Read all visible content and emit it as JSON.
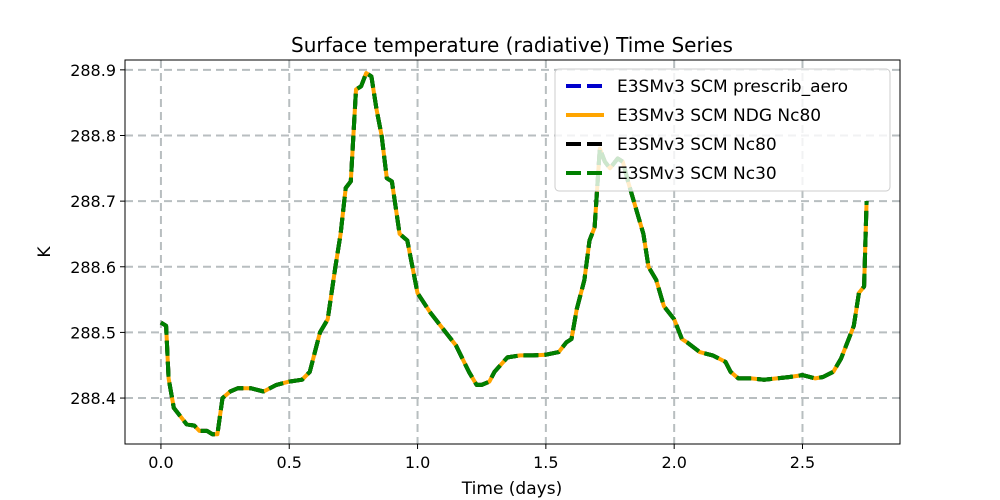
{
  "chart_data": {
    "type": "line",
    "title": "Surface temperature (radiative) Time Series",
    "xlabel": "Time (days)",
    "ylabel": "K",
    "xlim": [
      -0.14,
      2.88
    ],
    "ylim": [
      288.33,
      288.915
    ],
    "xticks": [
      0.0,
      0.5,
      1.0,
      1.5,
      2.0,
      2.5
    ],
    "xtick_labels": [
      "0.0",
      "0.5",
      "1.0",
      "1.5",
      "2.0",
      "2.5"
    ],
    "yticks": [
      288.4,
      288.5,
      288.6,
      288.7,
      288.8,
      288.9
    ],
    "ytick_labels": [
      "288.4",
      "288.5",
      "288.6",
      "288.7",
      "288.8",
      "288.9"
    ],
    "grid": true,
    "legend_position": "top-right",
    "x": [
      0.0,
      0.02,
      0.03,
      0.05,
      0.08,
      0.1,
      0.13,
      0.15,
      0.18,
      0.2,
      0.22,
      0.24,
      0.27,
      0.3,
      0.35,
      0.4,
      0.45,
      0.5,
      0.55,
      0.58,
      0.62,
      0.65,
      0.68,
      0.7,
      0.72,
      0.74,
      0.76,
      0.78,
      0.8,
      0.82,
      0.84,
      0.86,
      0.88,
      0.9,
      0.93,
      0.96,
      1.0,
      1.05,
      1.1,
      1.15,
      1.2,
      1.23,
      1.25,
      1.28,
      1.3,
      1.35,
      1.4,
      1.45,
      1.5,
      1.55,
      1.58,
      1.6,
      1.62,
      1.65,
      1.67,
      1.69,
      1.71,
      1.73,
      1.75,
      1.78,
      1.8,
      1.82,
      1.85,
      1.88,
      1.9,
      1.93,
      1.96,
      2.0,
      2.03,
      2.05,
      2.1,
      2.15,
      2.2,
      2.22,
      2.25,
      2.3,
      2.35,
      2.4,
      2.45,
      2.5,
      2.55,
      2.58,
      2.62,
      2.65,
      2.68,
      2.7,
      2.72,
      2.74,
      2.75
    ],
    "series": [
      {
        "name": "E3SMv3 SCM prescrib_aero",
        "color": "#0000cc",
        "style": "dashed",
        "values": [
          288.515,
          288.51,
          288.43,
          288.385,
          288.37,
          288.36,
          288.358,
          288.35,
          288.35,
          288.345,
          288.345,
          288.4,
          288.41,
          288.415,
          288.415,
          288.41,
          288.42,
          288.425,
          288.428,
          288.44,
          288.5,
          288.52,
          288.6,
          288.65,
          288.72,
          288.73,
          288.87,
          288.875,
          288.895,
          288.89,
          288.84,
          288.8,
          288.735,
          288.73,
          288.65,
          288.64,
          288.56,
          288.53,
          288.505,
          288.48,
          288.44,
          288.42,
          288.42,
          288.425,
          288.44,
          288.462,
          288.465,
          288.465,
          288.466,
          288.47,
          288.485,
          288.49,
          288.535,
          288.58,
          288.64,
          288.66,
          288.78,
          288.76,
          288.75,
          288.765,
          288.76,
          288.73,
          288.69,
          288.65,
          288.6,
          288.58,
          288.54,
          288.52,
          288.49,
          288.485,
          288.47,
          288.465,
          288.455,
          288.44,
          288.43,
          288.43,
          288.428,
          288.43,
          288.432,
          288.435,
          288.43,
          288.432,
          288.44,
          288.46,
          288.49,
          288.51,
          288.56,
          288.57,
          288.7
        ]
      },
      {
        "name": "E3SMv3 SCM NDG Nc80",
        "color": "#ffa500",
        "style": "solid",
        "values": [
          288.515,
          288.51,
          288.43,
          288.385,
          288.37,
          288.36,
          288.358,
          288.35,
          288.35,
          288.345,
          288.345,
          288.4,
          288.41,
          288.415,
          288.415,
          288.41,
          288.42,
          288.425,
          288.428,
          288.44,
          288.5,
          288.52,
          288.6,
          288.65,
          288.72,
          288.73,
          288.87,
          288.875,
          288.895,
          288.89,
          288.84,
          288.8,
          288.735,
          288.73,
          288.65,
          288.64,
          288.56,
          288.53,
          288.505,
          288.48,
          288.44,
          288.42,
          288.42,
          288.425,
          288.44,
          288.462,
          288.465,
          288.465,
          288.466,
          288.47,
          288.485,
          288.49,
          288.535,
          288.58,
          288.64,
          288.66,
          288.78,
          288.76,
          288.75,
          288.765,
          288.76,
          288.73,
          288.69,
          288.65,
          288.6,
          288.58,
          288.54,
          288.52,
          288.49,
          288.485,
          288.47,
          288.465,
          288.455,
          288.44,
          288.43,
          288.43,
          288.428,
          288.43,
          288.432,
          288.435,
          288.43,
          288.432,
          288.44,
          288.46,
          288.49,
          288.51,
          288.56,
          288.57,
          288.7
        ]
      },
      {
        "name": "E3SMv3 SCM Nc80",
        "color": "#000000",
        "style": "dashed",
        "values": [
          288.515,
          288.51,
          288.43,
          288.385,
          288.37,
          288.36,
          288.358,
          288.35,
          288.35,
          288.345,
          288.345,
          288.4,
          288.41,
          288.415,
          288.415,
          288.41,
          288.42,
          288.425,
          288.428,
          288.44,
          288.5,
          288.52,
          288.6,
          288.65,
          288.72,
          288.73,
          288.87,
          288.875,
          288.895,
          288.89,
          288.84,
          288.8,
          288.735,
          288.73,
          288.65,
          288.64,
          288.56,
          288.53,
          288.505,
          288.48,
          288.44,
          288.42,
          288.42,
          288.425,
          288.44,
          288.462,
          288.465,
          288.465,
          288.466,
          288.47,
          288.485,
          288.49,
          288.535,
          288.58,
          288.64,
          288.66,
          288.78,
          288.76,
          288.75,
          288.765,
          288.76,
          288.73,
          288.69,
          288.65,
          288.6,
          288.58,
          288.54,
          288.52,
          288.49,
          288.485,
          288.47,
          288.465,
          288.455,
          288.44,
          288.43,
          288.43,
          288.428,
          288.43,
          288.432,
          288.435,
          288.43,
          288.432,
          288.44,
          288.46,
          288.49,
          288.51,
          288.56,
          288.57,
          288.7
        ]
      },
      {
        "name": "E3SMv3 SCM Nc30",
        "color": "#008000",
        "style": "dashed",
        "values": [
          288.515,
          288.51,
          288.43,
          288.385,
          288.37,
          288.36,
          288.358,
          288.35,
          288.35,
          288.345,
          288.345,
          288.4,
          288.41,
          288.415,
          288.415,
          288.41,
          288.42,
          288.425,
          288.428,
          288.44,
          288.5,
          288.52,
          288.6,
          288.65,
          288.72,
          288.73,
          288.87,
          288.875,
          288.895,
          288.89,
          288.84,
          288.8,
          288.735,
          288.73,
          288.65,
          288.64,
          288.56,
          288.53,
          288.505,
          288.48,
          288.44,
          288.42,
          288.42,
          288.425,
          288.44,
          288.462,
          288.465,
          288.465,
          288.466,
          288.47,
          288.485,
          288.49,
          288.535,
          288.58,
          288.64,
          288.66,
          288.78,
          288.76,
          288.75,
          288.765,
          288.76,
          288.73,
          288.69,
          288.65,
          288.6,
          288.58,
          288.54,
          288.52,
          288.49,
          288.485,
          288.47,
          288.465,
          288.455,
          288.44,
          288.43,
          288.43,
          288.428,
          288.43,
          288.432,
          288.435,
          288.43,
          288.432,
          288.44,
          288.46,
          288.49,
          288.51,
          288.56,
          288.57,
          288.7
        ]
      }
    ]
  }
}
